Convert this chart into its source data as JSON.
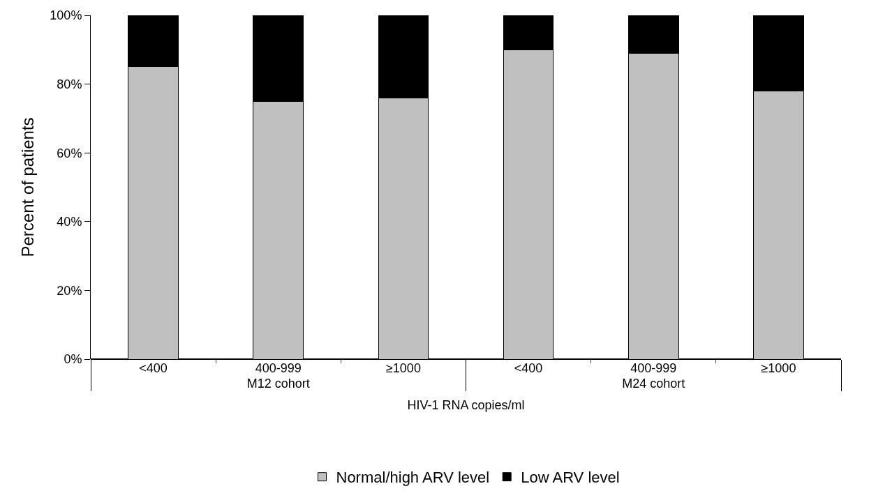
{
  "chart_data": {
    "type": "bar",
    "stacked": true,
    "categories": [
      "<400",
      "400-999",
      "≥1000",
      "<400",
      "400-999",
      "≥1000"
    ],
    "annotations": [
      "M12 cohort",
      "M24 cohort"
    ],
    "xlabel": "HIV-1 RNA copies/ml",
    "ylabel": "Percent of patients",
    "series": [
      {
        "name": "Normal/high ARV level",
        "color": "#c0c0c0",
        "values": [
          85,
          75,
          76,
          90,
          89,
          78
        ]
      },
      {
        "name": "Low ARV level",
        "color": "#000000",
        "values": [
          15,
          25,
          24,
          10,
          11,
          22
        ]
      }
    ],
    "ylim": [
      0,
      100
    ],
    "yticks": [
      {
        "value": 0,
        "label": "0%"
      },
      {
        "value": 20,
        "label": "20%"
      },
      {
        "value": 40,
        "label": "40%"
      },
      {
        "value": 60,
        "label": "60%"
      },
      {
        "value": 80,
        "label": "80%"
      },
      {
        "value": 100,
        "label": "100%"
      }
    ],
    "legend": "bottom"
  }
}
